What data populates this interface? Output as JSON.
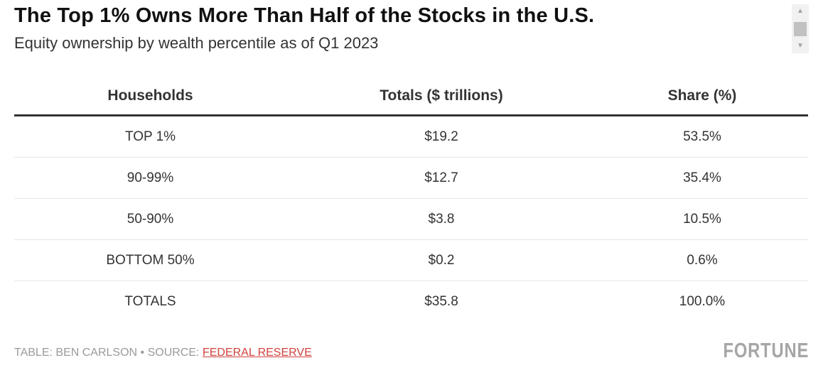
{
  "chart_data": {
    "type": "table",
    "title": "The Top 1% Owns More Than Half of the Stocks in the U.S.",
    "subtitle": "Equity ownership by wealth percentile as of Q1 2023",
    "columns": [
      "Households",
      "Totals ($ trillions)",
      "Share (%)"
    ],
    "rows": [
      [
        "TOP 1%",
        "$19.2",
        "53.5%"
      ],
      [
        "90-99%",
        "$12.7",
        "35.4%"
      ],
      [
        "50-90%",
        "$3.8",
        "10.5%"
      ],
      [
        "BOTTOM 50%",
        "$0.2",
        "0.6%"
      ],
      [
        "TOTALS",
        "$35.8",
        "100.0%"
      ]
    ]
  },
  "footer": {
    "credit": "TABLE: BEN CARLSON • SOURCE: ",
    "source_label": "FEDERAL RESERVE"
  },
  "logo": "FORTUNE",
  "icons": {
    "scroll_up": "triangle-up-icon",
    "scroll_down": "triangle-down-icon"
  },
  "colors": {
    "link": "#d0423d",
    "header_rule": "#333333",
    "logo": "#a6a6a6"
  }
}
